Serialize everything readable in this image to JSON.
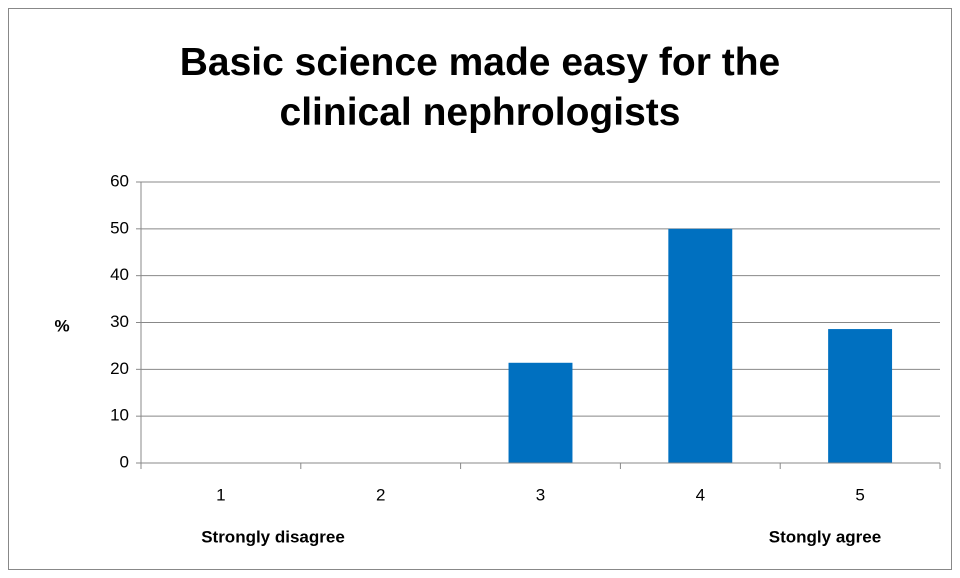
{
  "chart_data": {
    "type": "bar",
    "title": "Basic science made easy for the clinical nephrologists",
    "y_label": "%",
    "categories": [
      "1",
      "2",
      "3",
      "4",
      "5"
    ],
    "values": [
      0,
      0,
      21.4,
      50,
      28.6
    ],
    "color": "#0070c0",
    "ylim": [
      0,
      60
    ],
    "yticks": [
      0,
      10,
      20,
      30,
      40,
      50,
      60
    ],
    "grid": true,
    "annotations": [
      "Strongly disagree",
      "Stongly agree"
    ]
  }
}
